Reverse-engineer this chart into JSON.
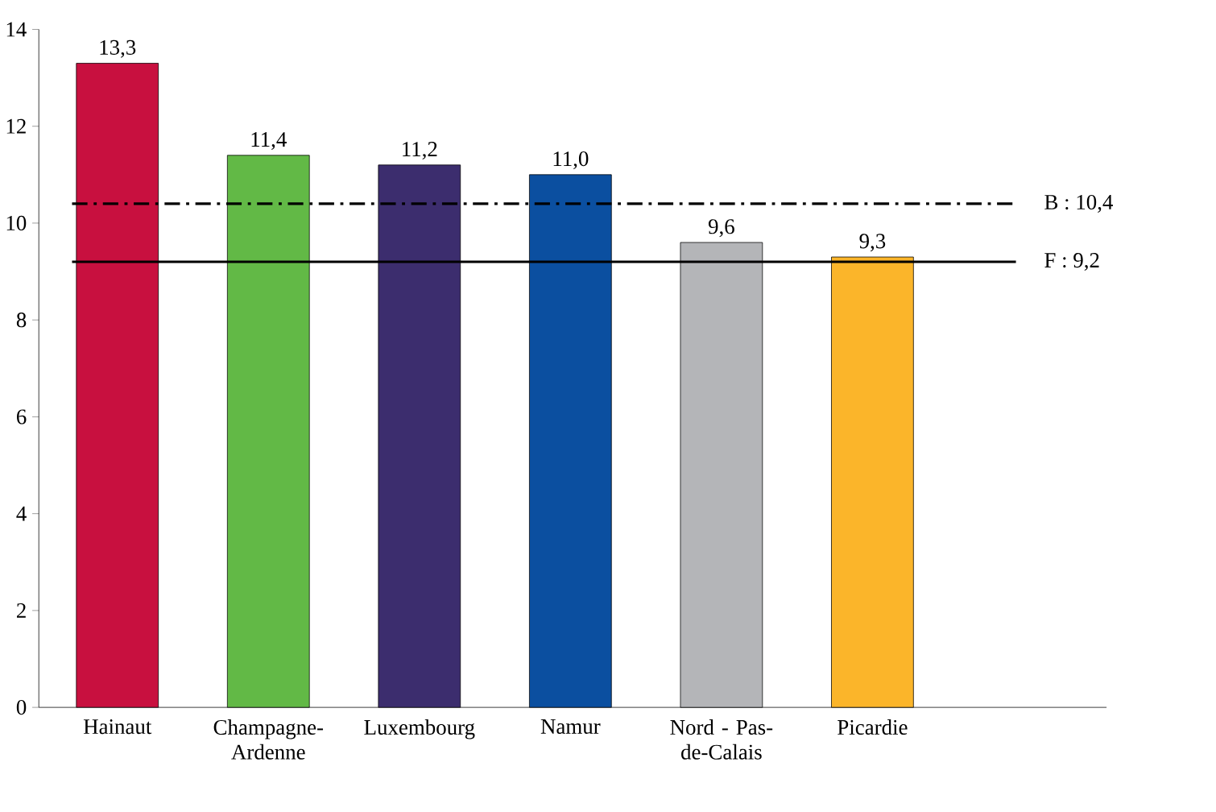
{
  "chart_data": {
    "type": "bar",
    "categories": [
      "Hainaut",
      "Champagne-Ardenne",
      "Luxembourg",
      "Namur",
      "Nord - Pas-de-Calais",
      "Picardie"
    ],
    "values": [
      13.3,
      11.4,
      11.2,
      11.0,
      9.6,
      9.3
    ],
    "value_labels": [
      "13,3",
      "11,4",
      "11,2",
      "11,0",
      "9,6",
      "9,3"
    ],
    "colors": [
      "#c8103f",
      "#62b946",
      "#3c2d6e",
      "#0b4fa0",
      "#b4b5b8",
      "#fbb52a"
    ],
    "ylim": [
      0,
      14
    ],
    "yticks": [
      0,
      2,
      4,
      6,
      8,
      10,
      12,
      14
    ],
    "ref_lines": [
      {
        "axis": "y",
        "value": 10.4,
        "label": "B : 10,4",
        "color": "#000000",
        "line_style": "dashdot"
      },
      {
        "axis": "y",
        "value": 9.2,
        "label": "F : 9,2",
        "color": "#000000",
        "line_style": "solid"
      }
    ]
  }
}
